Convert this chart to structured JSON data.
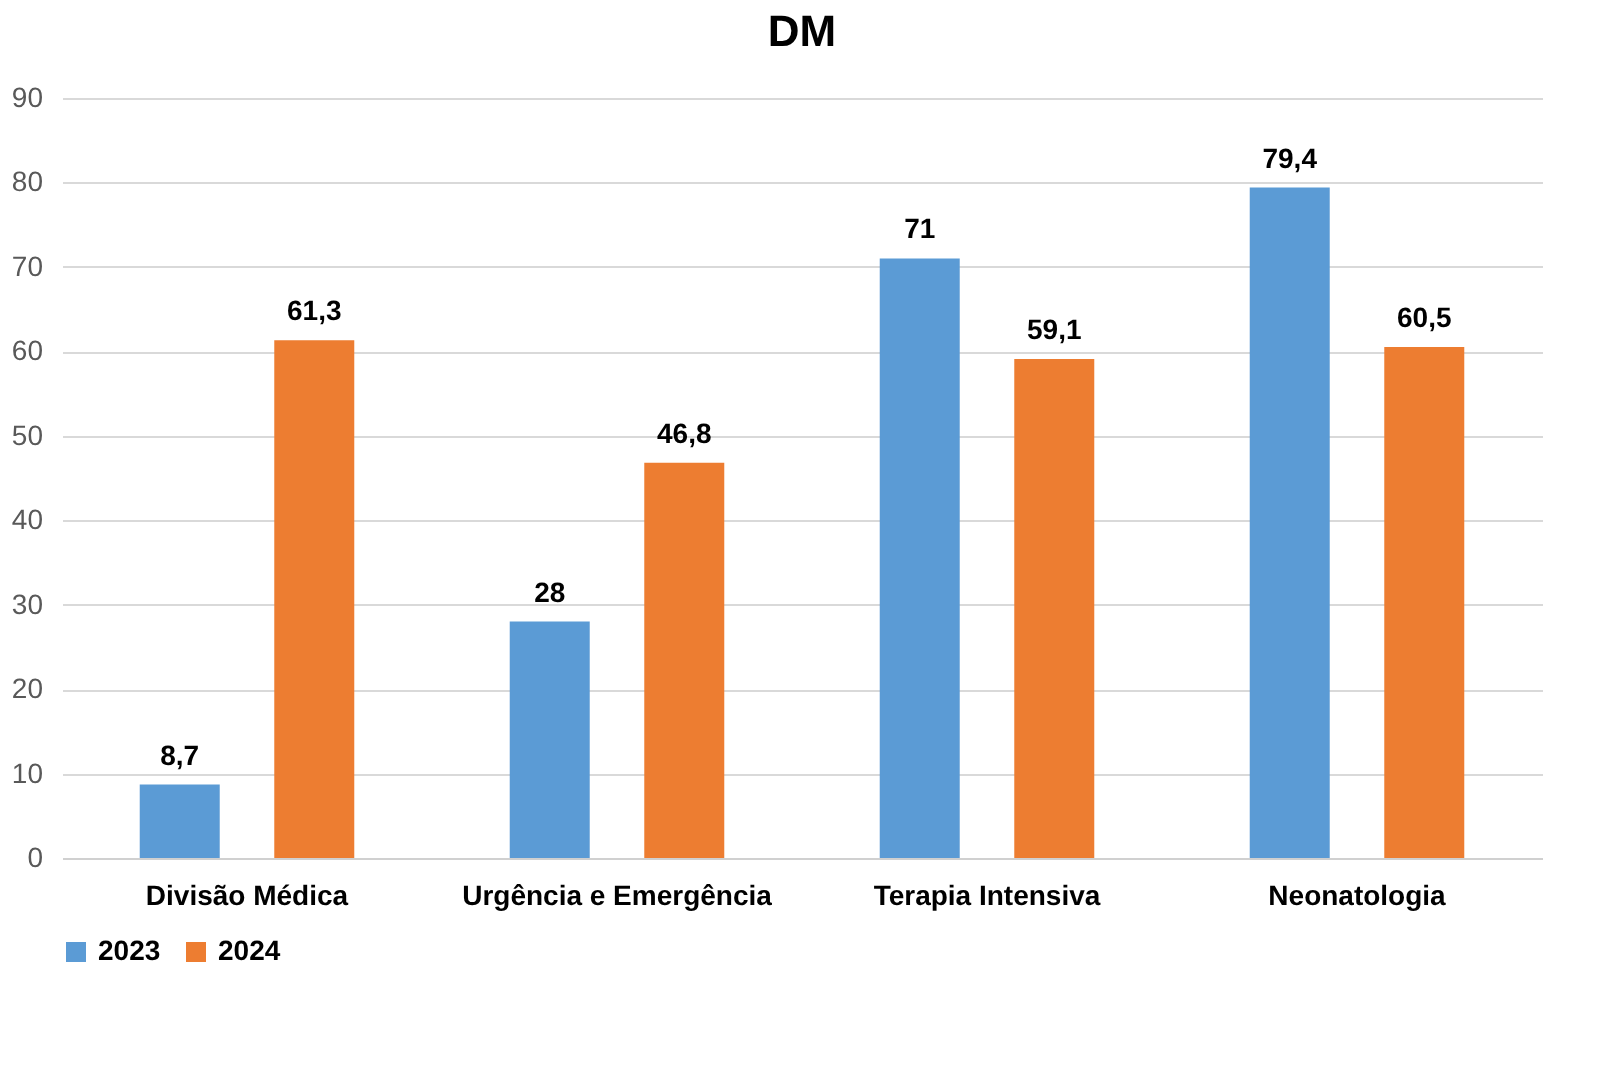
{
  "chart_data": {
    "type": "bar",
    "title": "DM",
    "categories": [
      "Divisão Médica",
      "Urgência e Emergência",
      "Terapia Intensiva",
      "Neonatologia"
    ],
    "series": [
      {
        "name": "2023",
        "color": "#5b9bd5",
        "values": [
          8.7,
          28,
          71,
          79.4
        ],
        "value_labels": [
          "8,7",
          "28",
          "71",
          "79,4"
        ]
      },
      {
        "name": "2024",
        "color": "#ed7d31",
        "values": [
          61.3,
          46.8,
          59.1,
          60.5
        ],
        "value_labels": [
          "61,3",
          "46,8",
          "59,1",
          "60,5"
        ]
      }
    ],
    "ylim": [
      0,
      90
    ],
    "yticks": [
      0,
      10,
      20,
      30,
      40,
      50,
      60,
      70,
      80,
      90
    ],
    "grid": "y",
    "legend": "bottom"
  }
}
